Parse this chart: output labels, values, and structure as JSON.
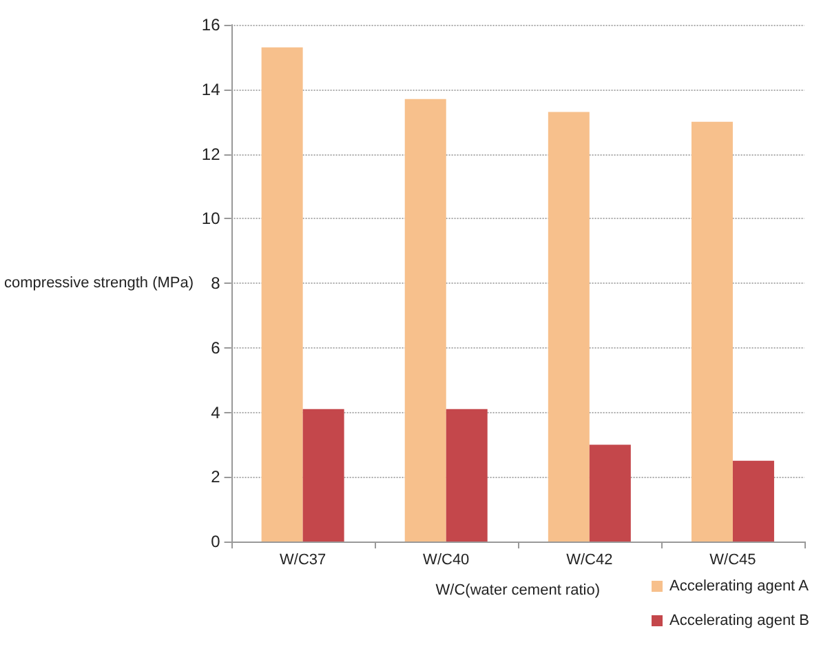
{
  "chart_data": {
    "type": "bar",
    "xlabel": "W/C(water cement ratio)",
    "ylabel": "compressive strength (MPa)",
    "categories": [
      "W/C37",
      "W/C40",
      "W/C42",
      "W/C45"
    ],
    "series": [
      {
        "name": "Accelerating agent A",
        "color": "#f7c08c",
        "values": [
          15.3,
          13.7,
          13.3,
          13.0
        ]
      },
      {
        "name": "Accelerating agent B",
        "color": "#c4474b",
        "values": [
          4.1,
          4.1,
          3.0,
          2.5
        ]
      }
    ],
    "ylim": [
      0,
      16
    ],
    "yticks": [
      0,
      2,
      4,
      6,
      8,
      10,
      12,
      14,
      16
    ],
    "grid": "y",
    "legend": "bottom right"
  }
}
